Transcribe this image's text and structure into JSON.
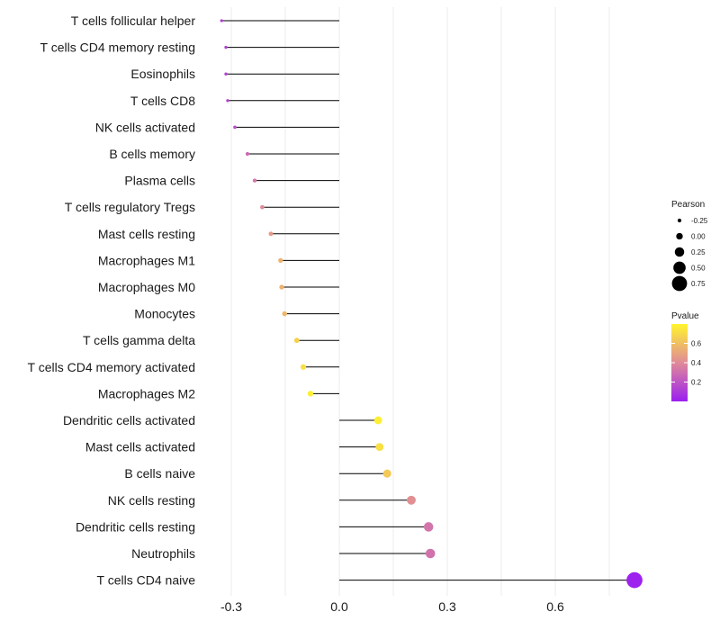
{
  "chart_data": {
    "type": "lollipop",
    "categories": [
      "T cells follicular helper",
      "T cells CD4 memory resting",
      "Eosinophils",
      "T cells CD8",
      "NK cells activated",
      "B cells memory",
      "Plasma cells",
      "T cells regulatory  Tregs ",
      "Mast cells resting",
      "Macrophages M1",
      "Macrophages M0",
      "Monocytes",
      "T cells gamma delta",
      "T cells CD4 memory activated",
      "Macrophages M2",
      "Dendritic cells activated",
      "Mast cells activated",
      "B cells naive",
      "NK cells resting",
      "Dendritic cells resting",
      "Neutrophils",
      "T cells CD4 naive"
    ],
    "pearson": [
      -0.327,
      -0.315,
      -0.315,
      -0.31,
      -0.29,
      -0.255,
      -0.235,
      -0.214,
      -0.19,
      -0.163,
      -0.16,
      -0.152,
      -0.118,
      -0.1,
      -0.08,
      0.108,
      0.112,
      0.133,
      0.2,
      0.248,
      0.253,
      0.82
    ],
    "pvalue": [
      0.12,
      0.14,
      0.14,
      0.15,
      0.18,
      0.28,
      0.33,
      0.4,
      0.46,
      0.55,
      0.55,
      0.57,
      0.67,
      0.72,
      0.78,
      0.78,
      0.72,
      0.64,
      0.42,
      0.32,
      0.31,
      0.01
    ],
    "xlim": [
      -0.33,
      0.82
    ],
    "x_ticks": [
      "-0.3",
      "0.0",
      "0.3",
      "0.6"
    ],
    "x_tick_values": [
      -0.3,
      0.0,
      0.3,
      0.6
    ],
    "legend_pearson": {
      "title": "Pearson",
      "labels": [
        "-0.25",
        "0.00",
        "0.25",
        "0.50",
        "0.75"
      ],
      "values": [
        -0.25,
        0.0,
        0.25,
        0.5,
        0.75
      ]
    },
    "legend_pvalue": {
      "title": "Pvalue",
      "labels": [
        "0.6",
        "0.4",
        "0.2"
      ],
      "values": [
        0.6,
        0.4,
        0.2
      ],
      "range": [
        0.0,
        0.8
      ]
    },
    "colors": {
      "low": "#9b1ff0",
      "mid": "#e08a98",
      "high": "#fff42e",
      "stem": "#000000",
      "grid": "#ebebeb"
    }
  }
}
